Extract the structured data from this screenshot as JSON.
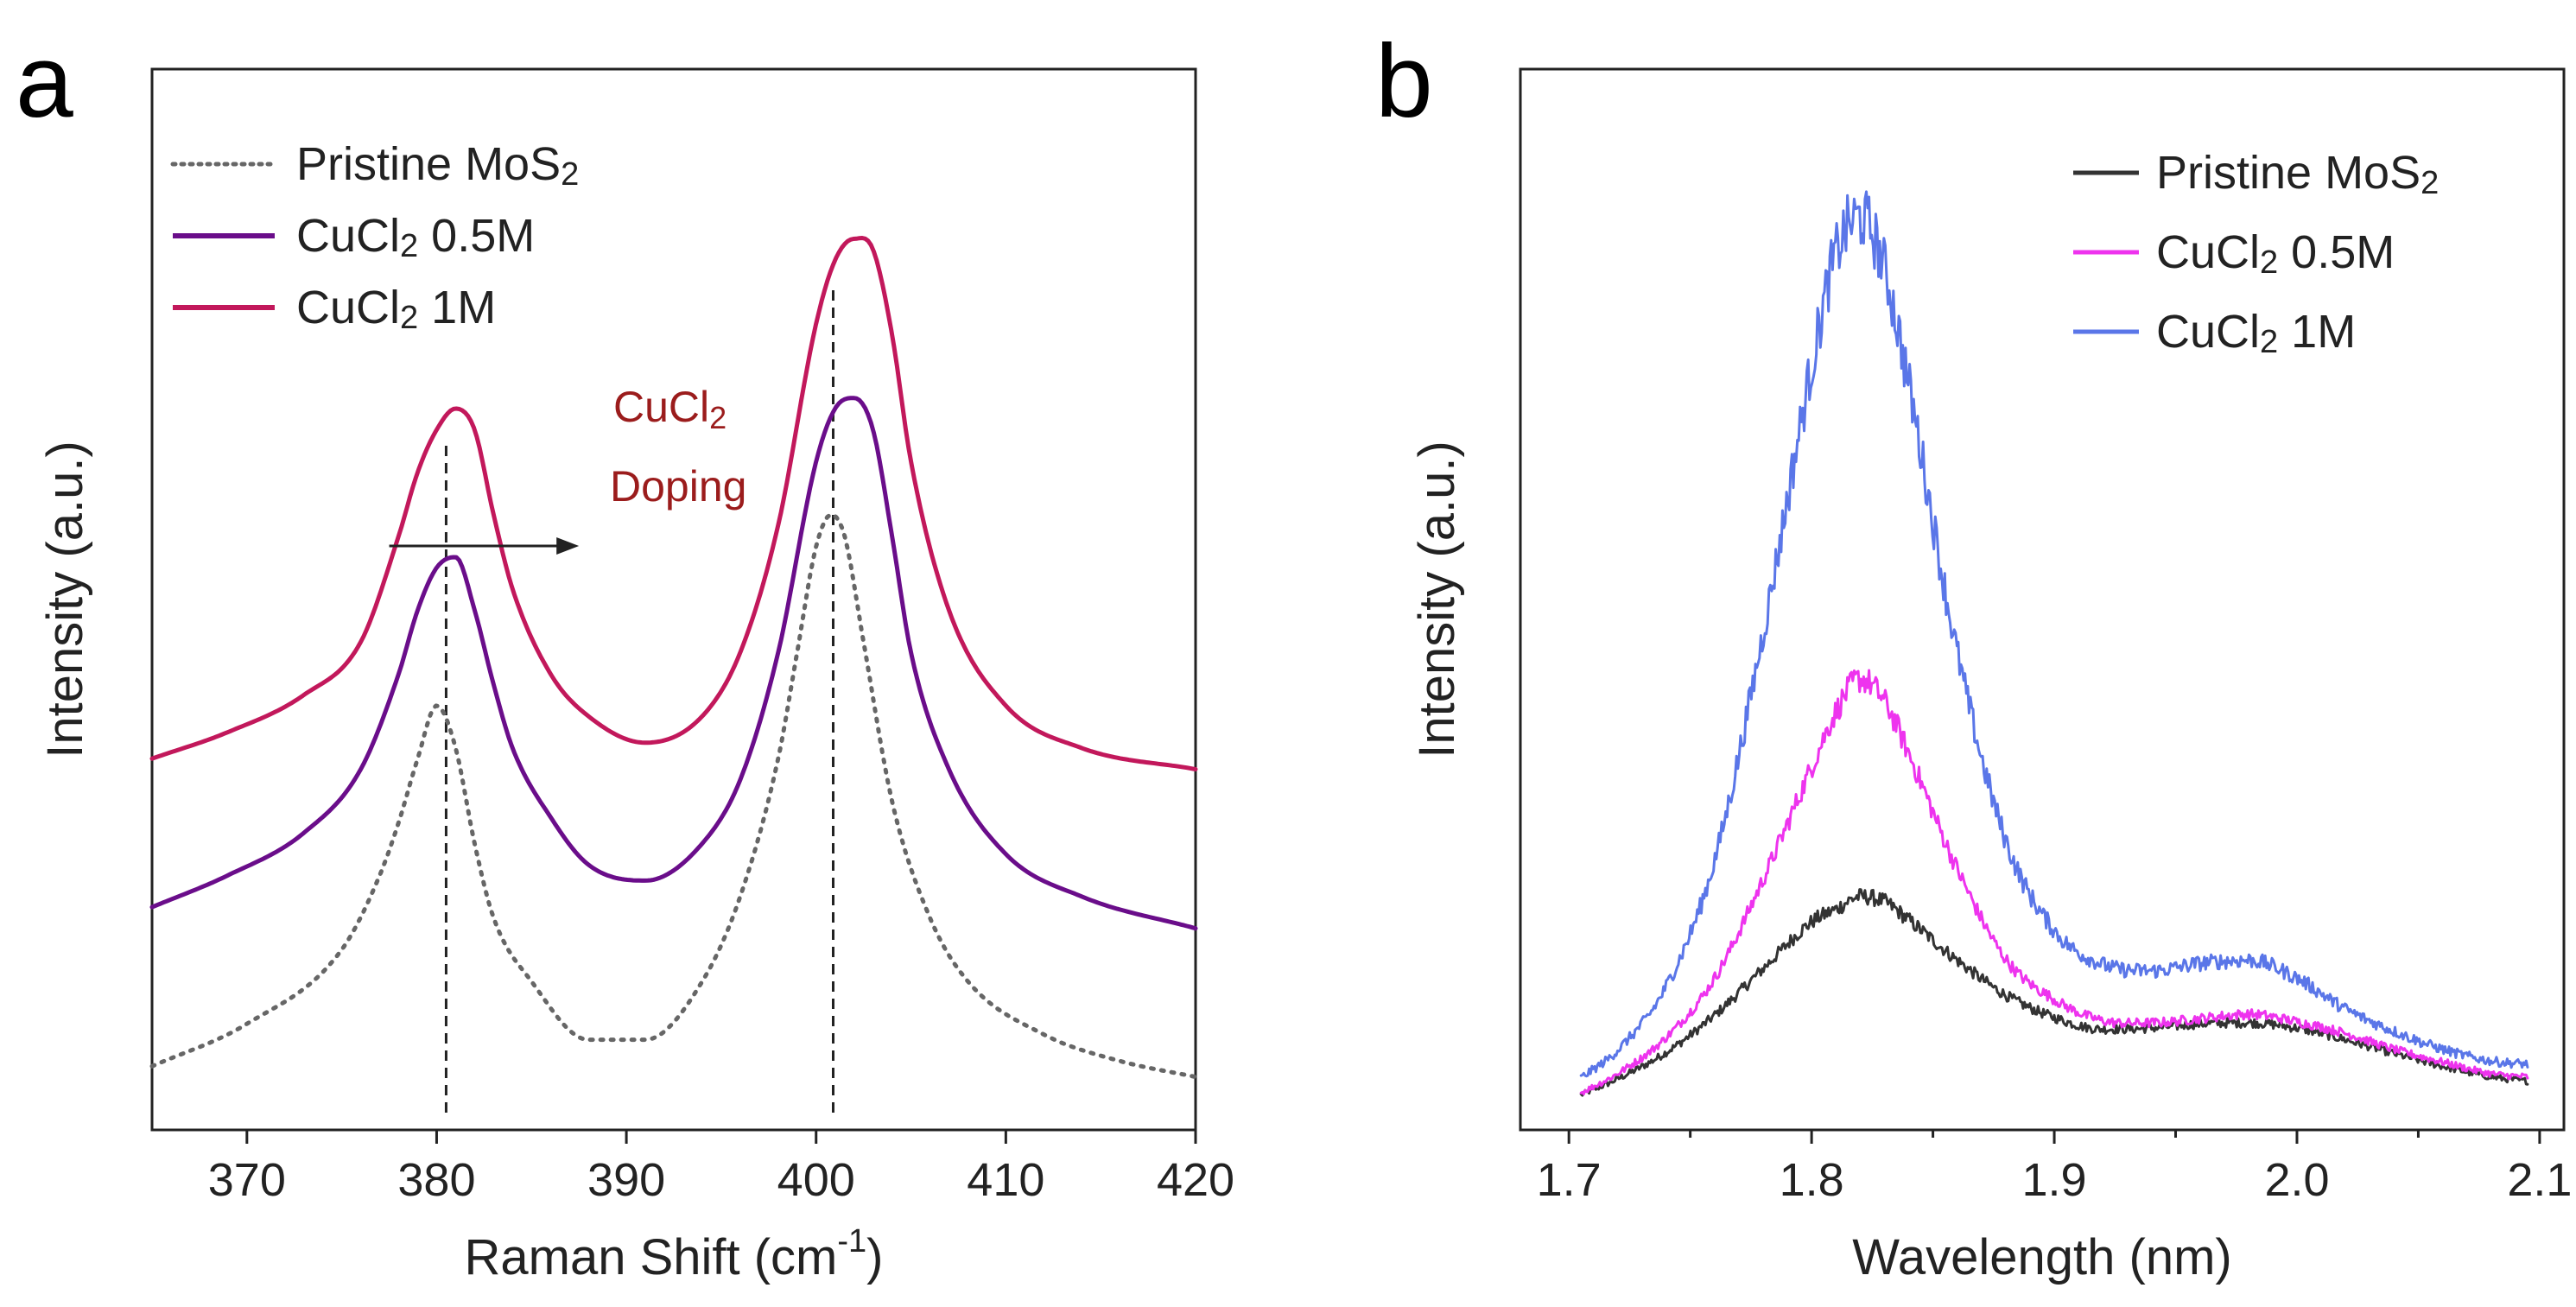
{
  "figure": {
    "panel_a_letter": "a",
    "panel_b_letter": "b"
  },
  "chart_data": [
    {
      "type": "line",
      "panel": "a",
      "title": "",
      "xlabel": "Raman Shift (cm",
      "xlabel_sup": "-1",
      "xlabel_close": ")",
      "ylabel": "Intensity (a.u.)",
      "xlim": [
        365,
        420
      ],
      "ylim": [
        0,
        100
      ],
      "xticks": [
        370,
        380,
        390,
        400,
        410,
        420
      ],
      "legend": {
        "position": "top-left",
        "entries": [
          {
            "name": "Pristine MoS",
            "sub": "2",
            "suffix": ""
          },
          {
            "name": "CuCl",
            "sub": "2",
            "suffix": " 0.5M"
          },
          {
            "name": "CuCl",
            "sub": "2",
            "suffix": " 1M"
          }
        ]
      },
      "annotation": {
        "line1": "CuCl",
        "line1_sub": "2",
        "line2": "Doping",
        "color": "#9b1c1c",
        "arrow_from": 377.5,
        "arrow_to": 387.5
      },
      "reference_lines": [
        380.5,
        400.9
      ],
      "series": [
        {
          "name": "Pristine MoS2",
          "color": "#666666",
          "style": "dotted",
          "x": [
            365,
            370,
            375,
            377,
            378,
            379,
            380,
            381,
            382,
            383,
            385,
            388,
            391,
            394,
            396,
            398,
            399,
            400,
            400.8,
            401.5,
            402.5,
            404,
            406,
            408,
            412,
            416,
            420
          ],
          "y": [
            6,
            10,
            17,
            24,
            29,
            35,
            40,
            36,
            27,
            20,
            14,
            8.5,
            8.5,
            14,
            22,
            35,
            45,
            55,
            58,
            56,
            46,
            31,
            20,
            14,
            9,
            6.5,
            5
          ]
        },
        {
          "name": "CuCl2 0.5M",
          "color": "#6a0d8a",
          "style": "solid",
          "x": [
            365,
            369,
            373,
            376,
            378,
            379,
            380,
            381,
            382,
            383,
            384,
            386,
            388,
            391,
            394,
            396,
            398,
            400,
            401,
            402,
            403,
            404,
            405,
            407,
            410,
            414,
            420
          ],
          "y": [
            21,
            24,
            28,
            34,
            43,
            49,
            53,
            54,
            49,
            42,
            36,
            29.5,
            25,
            23.5,
            27,
            33,
            45,
            63,
            68,
            69,
            66,
            56,
            45,
            34,
            26,
            22,
            19
          ]
        },
        {
          "name": "CuCl2 1M",
          "color": "#c2185b",
          "style": "solid",
          "x": [
            365,
            369,
            373,
            376,
            378,
            379,
            380,
            381,
            382,
            383,
            384,
            386,
            388,
            391,
            394,
            396,
            398,
            400,
            401,
            402,
            403,
            404,
            405,
            407,
            410,
            414,
            420
          ],
          "y": [
            35,
            37.5,
            41,
            46,
            56,
            62,
            66,
            68,
            66,
            58,
            51,
            43,
            39,
            36.5,
            39,
            45,
            57,
            76,
            82,
            84,
            83,
            75,
            63,
            49,
            40,
            36,
            34
          ]
        }
      ]
    },
    {
      "type": "line",
      "panel": "b",
      "title": "",
      "xlabel": "Wavelength (nm)",
      "ylabel": "Intensity (a.u.)",
      "xlim": [
        1.68,
        2.11
      ],
      "ylim": [
        0,
        100
      ],
      "xticks": [
        1.7,
        1.8,
        1.9,
        2.0,
        2.1
      ],
      "xtick_labels": [
        "1.7",
        "1.8",
        "1.9",
        "2.0",
        "2.1"
      ],
      "legend": {
        "position": "top-right",
        "entries": [
          {
            "name": "Pristine MoS",
            "sub": "2",
            "suffix": ""
          },
          {
            "name": "CuCl",
            "sub": "2",
            "suffix": " 0.5M"
          },
          {
            "name": "CuCl",
            "sub": "2",
            "suffix": " 1M"
          }
        ]
      },
      "series": [
        {
          "name": "Pristine MoS2",
          "color": "#333333",
          "x": [
            1.705,
            1.72,
            1.74,
            1.76,
            1.78,
            1.8,
            1.81,
            1.82,
            1.83,
            1.84,
            1.86,
            1.88,
            1.9,
            1.92,
            1.94,
            1.96,
            1.98,
            2.0,
            2.02,
            2.04,
            2.06,
            2.08,
            2.095
          ],
          "y": [
            3.3,
            4.8,
            7.3,
            10.8,
            15.2,
            19.6,
            20.8,
            22.0,
            21.5,
            19.8,
            16.0,
            12.7,
            10.6,
            9.5,
            9.6,
            10.0,
            10.1,
            9.6,
            8.5,
            7.2,
            6.0,
            5.0,
            4.6
          ]
        },
        {
          "name": "CuCl2 0.5M",
          "color": "#ee33ee",
          "x": [
            1.705,
            1.72,
            1.74,
            1.76,
            1.78,
            1.8,
            1.81,
            1.82,
            1.83,
            1.84,
            1.86,
            1.88,
            1.9,
            1.92,
            1.94,
            1.96,
            1.98,
            2.0,
            2.02,
            2.04,
            2.06,
            2.08,
            2.095
          ],
          "y": [
            3.5,
            5.3,
            8.7,
            14.3,
            23.6,
            34.2,
            39.4,
            42.5,
            40.4,
            35.5,
            24.6,
            16.1,
            12.3,
            10.3,
            10.1,
            10.5,
            10.9,
            10.2,
            9.1,
            7.6,
            6.4,
            5.3,
            5.0
          ]
        },
        {
          "name": "CuCl2 1M",
          "color": "#5a76e8",
          "x": [
            1.705,
            1.72,
            1.74,
            1.76,
            1.78,
            1.8,
            1.81,
            1.82,
            1.83,
            1.84,
            1.86,
            1.88,
            1.9,
            1.92,
            1.94,
            1.96,
            1.98,
            2.0,
            2.02,
            2.04,
            2.06,
            2.08,
            2.095
          ],
          "y": [
            4.9,
            7.5,
            13.5,
            25.4,
            46.8,
            72.0,
            82.6,
            86.0,
            81.2,
            70.3,
            45.0,
            27.3,
            18.8,
            15.6,
            15.0,
            15.7,
            16.0,
            14.3,
            11.4,
            9.3,
            7.6,
            6.5,
            6.2
          ]
        }
      ]
    }
  ]
}
